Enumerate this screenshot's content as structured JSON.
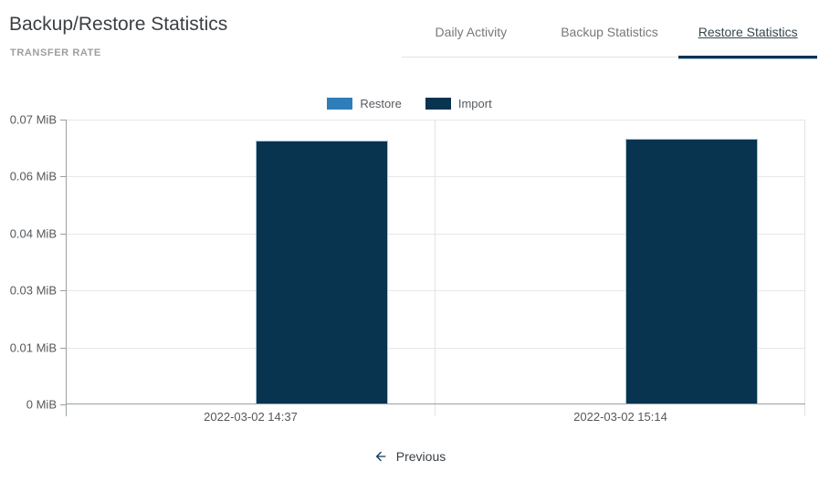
{
  "header": {
    "title": "Backup/Restore Statistics",
    "subtitle": "TRANSFER RATE"
  },
  "tabs": [
    {
      "id": "daily-activity",
      "label": "Daily Activity",
      "active": false
    },
    {
      "id": "backup-statistics",
      "label": "Backup Statistics",
      "active": false
    },
    {
      "id": "restore-statistics",
      "label": "Restore Statistics",
      "active": true
    }
  ],
  "colors": {
    "restore_blue": "#2f7db9",
    "import_navy": "#083450",
    "active_tab_underline": "#123350",
    "axis_gray": "#9aa0a3",
    "gridline_gray": "#e7e7e7"
  },
  "chart_data": {
    "type": "bar",
    "title": "",
    "xlabel": "",
    "ylabel": "",
    "unit": "MiB",
    "categories": [
      "2022-03-02 14:37",
      "2022-03-02 15:14"
    ],
    "series": [
      {
        "name": "Restore",
        "color": "#2f7db9",
        "values": [
          0,
          0
        ]
      },
      {
        "name": "Import",
        "color": "#083450",
        "values": [
          0.0648,
          0.0653
        ]
      }
    ],
    "ylim": [
      0,
      0.07
    ],
    "yticks": [
      {
        "value": 0.07,
        "label": "0.07 MiB"
      },
      {
        "value": 0.056,
        "label": "0.06 MiB"
      },
      {
        "value": 0.042,
        "label": "0.04 MiB"
      },
      {
        "value": 0.028,
        "label": "0.03 MiB"
      },
      {
        "value": 0.014,
        "label": "0.01 MiB"
      },
      {
        "value": 0,
        "label": "0 MiB"
      }
    ],
    "grid": true,
    "legend_position": "top-center"
  },
  "pagination": {
    "previous_label": "Previous"
  }
}
